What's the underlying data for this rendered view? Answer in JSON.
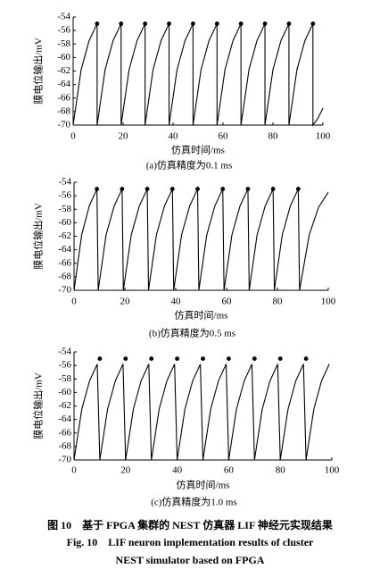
{
  "chart_data": [
    {
      "type": "line",
      "caption": "(a)仿真精度为0.1 ms",
      "xlabel": "仿真时间/ms",
      "ylabel": "膜电位输出/mV",
      "xlim": [
        0,
        100
      ],
      "ylim": [
        -70,
        -54
      ],
      "xticks": [
        0,
        20,
        40,
        60,
        80,
        100
      ],
      "yticks": [
        -70,
        -68,
        -66,
        -64,
        -62,
        -60,
        -58,
        -56,
        -54
      ],
      "series": [
        {
          "style": "line",
          "color": "#000000",
          "x": [
            0,
            3.2,
            6.4,
            9.6,
            9.6,
            12.8,
            16,
            19.2,
            19.2,
            22.4,
            25.6,
            28.8,
            28.8,
            32,
            35.2,
            38.4,
            38.4,
            41.6,
            44.8,
            48,
            48,
            51.2,
            54.4,
            57.6,
            57.6,
            60.8,
            64,
            67.2,
            67.2,
            70.4,
            73.6,
            76.8,
            76.8,
            80,
            83.2,
            86.4,
            86.4,
            89.6,
            92.8,
            96,
            96,
            98,
            100
          ],
          "values": [
            -70,
            -61.8,
            -57.5,
            -55,
            -70,
            -61.8,
            -57.5,
            -55,
            -70,
            -61.8,
            -57.5,
            -55,
            -70,
            -61.8,
            -57.5,
            -55,
            -70,
            -61.8,
            -57.5,
            -55,
            -70,
            -61.8,
            -57.5,
            -55,
            -70,
            -61.8,
            -57.5,
            -55,
            -70,
            -61.8,
            -57.5,
            -55,
            -70,
            -61.8,
            -57.5,
            -55,
            -70,
            -61.8,
            -57.5,
            -55,
            -70,
            -69,
            -67.5
          ]
        },
        {
          "style": "points",
          "color": "#000000",
          "x": [
            9.6,
            19.2,
            28.8,
            38.4,
            48,
            57.6,
            67.2,
            76.8,
            86.4,
            96
          ],
          "values": [
            -55,
            -55,
            -55,
            -55,
            -55,
            -55,
            -55,
            -55,
            -55,
            -55
          ]
        }
      ]
    },
    {
      "type": "line",
      "caption": "(b)仿真精度为0.5 ms",
      "xlabel": "仿真时间/ms",
      "ylabel": "膜电位输出/mV",
      "xlim": [
        0,
        100
      ],
      "ylim": [
        -70,
        -54
      ],
      "xticks": [
        0,
        20,
        40,
        60,
        80,
        100
      ],
      "yticks": [
        -70,
        -68,
        -66,
        -64,
        -62,
        -60,
        -58,
        -56,
        -54
      ],
      "series": [
        {
          "style": "line",
          "color": "#000000",
          "x": [
            0,
            3,
            6,
            9,
            9.5,
            12.6,
            15.8,
            18.9,
            19.4,
            22.5,
            25.7,
            28.8,
            29.3,
            32.4,
            35.6,
            38.7,
            39.2,
            42.3,
            45.5,
            48.6,
            49.1,
            52.2,
            55.4,
            58.5,
            59,
            62.1,
            65.3,
            68.4,
            68.9,
            72,
            75.2,
            78.3,
            78.8,
            81.9,
            85.1,
            88.2,
            88.7,
            92.5,
            96.2,
            100
          ],
          "values": [
            -70,
            -61.8,
            -57.5,
            -55,
            -70,
            -61.8,
            -57.5,
            -55,
            -70,
            -61.8,
            -57.5,
            -55,
            -70,
            -61.8,
            -57.5,
            -55,
            -70,
            -61.8,
            -57.5,
            -55,
            -70,
            -61.8,
            -57.5,
            -55,
            -70,
            -61.8,
            -57.5,
            -55,
            -70,
            -61.8,
            -57.5,
            -55,
            -70,
            -61.8,
            -57.5,
            -55,
            -70,
            -61.8,
            -57.7,
            -55.5
          ]
        },
        {
          "style": "points",
          "color": "#000000",
          "x": [
            9,
            18.9,
            28.8,
            38.7,
            48.6,
            58.5,
            68.4,
            78.3,
            88.2
          ],
          "values": [
            -55,
            -55,
            -55,
            -55,
            -55,
            -55,
            -55,
            -55,
            -55
          ]
        }
      ]
    },
    {
      "type": "line",
      "caption": "(c)仿真精度为1.0 ms",
      "xlabel": "仿真时间/ms",
      "ylabel": "膜电位输出/mV",
      "xlim": [
        0,
        100
      ],
      "ylim": [
        -70,
        -54
      ],
      "xticks": [
        0,
        20,
        40,
        60,
        80,
        100
      ],
      "yticks": [
        -70,
        -68,
        -66,
        -64,
        -62,
        -60,
        -58,
        -56,
        -54
      ],
      "series": [
        {
          "style": "line",
          "color": "#000000",
          "x": [
            0,
            3,
            6,
            9,
            10,
            13,
            16,
            19,
            20,
            23,
            26,
            29,
            30,
            33,
            36,
            39,
            40,
            43,
            46,
            49,
            50,
            53,
            56,
            59,
            60,
            63,
            66,
            69,
            70,
            73,
            76,
            79,
            80,
            83,
            86,
            89,
            90,
            93,
            96,
            99
          ],
          "values": [
            -70,
            -62.5,
            -58.3,
            -55.8,
            -70,
            -62.5,
            -58.3,
            -55.8,
            -70,
            -62.5,
            -58.3,
            -55.8,
            -70,
            -62.5,
            -58.3,
            -55.8,
            -70,
            -62.5,
            -58.3,
            -55.8,
            -70,
            -62.5,
            -58.3,
            -55.8,
            -70,
            -62.5,
            -58.3,
            -55.8,
            -70,
            -62.5,
            -58.3,
            -55.8,
            -70,
            -62.5,
            -58.3,
            -55.8,
            -70,
            -62.5,
            -58.3,
            -55.8
          ]
        },
        {
          "style": "points",
          "color": "#000000",
          "x": [
            10,
            20,
            30,
            40,
            50,
            60,
            70,
            80,
            90
          ],
          "values": [
            -55,
            -55,
            -55,
            -55,
            -55,
            -55,
            -55,
            -55,
            -55
          ]
        }
      ]
    }
  ],
  "figure_caption": {
    "zh": "图 10　基于 FPGA 集群的 NEST 仿真器 LIF 神经元实现结果",
    "en_lines": [
      "Fig. 10　LIF neuron implementation results of cluster",
      "NEST simulator based on FPGA"
    ]
  }
}
